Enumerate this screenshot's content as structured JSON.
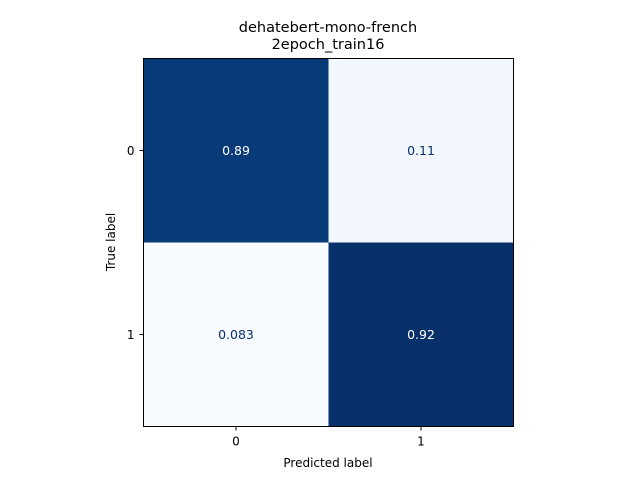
{
  "chart_data": {
    "type": "heatmap",
    "title_lines": [
      "dehatebert-mono-french",
      "2epoch_train16"
    ],
    "xlabel": "Predicted label",
    "ylabel": "True label",
    "x_categories": [
      "0",
      "1"
    ],
    "y_categories": [
      "0",
      "1"
    ],
    "values": [
      [
        0.89,
        0.11
      ],
      [
        0.083,
        0.92
      ]
    ],
    "cell_labels": [
      [
        "0.89",
        "0.11"
      ],
      [
        "0.083",
        "0.92"
      ]
    ],
    "colormap": "Blues",
    "value_range": [
      0.083,
      0.92
    ],
    "colorbar": false
  },
  "colors": {
    "high": "#08306b",
    "low": "#f7fbff",
    "text_on_dark": "#ffffff",
    "text_on_light": "#08306b",
    "axis": "#000000"
  }
}
